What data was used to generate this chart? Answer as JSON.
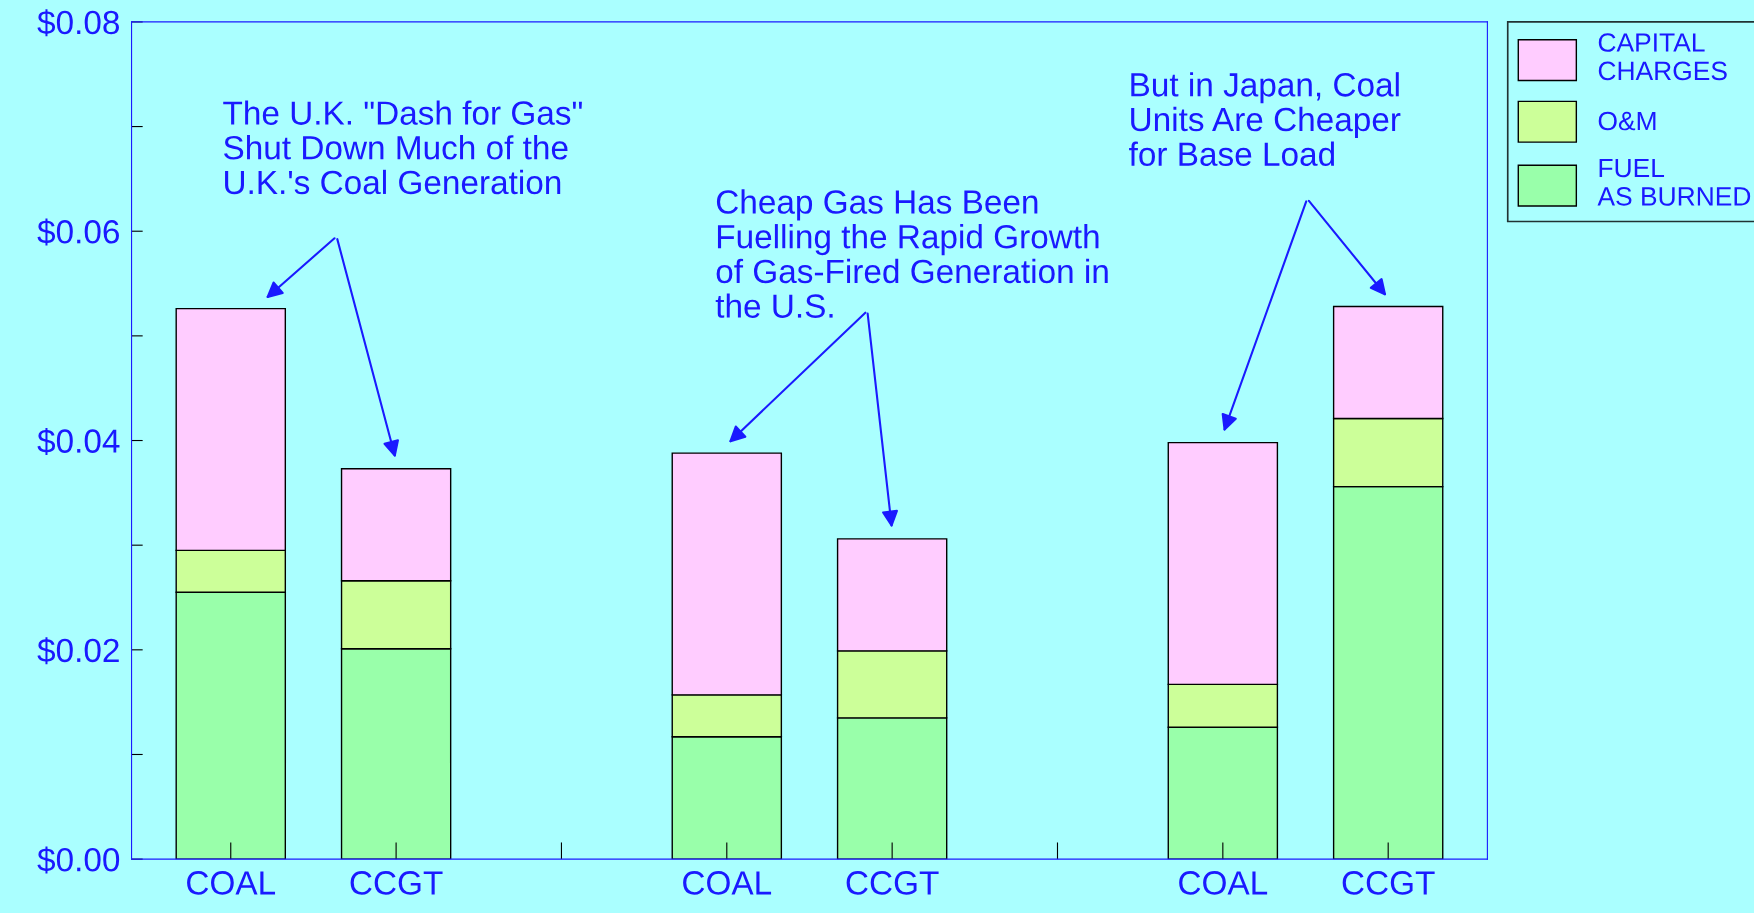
{
  "chart_data": {
    "type": "bar",
    "stacked": true,
    "categories": [
      "COAL",
      "CCGT",
      null,
      "COAL",
      "CCGT",
      null,
      "COAL",
      "CCGT"
    ],
    "series": [
      {
        "name": "FUEL AS BURNED",
        "color": "#99ffaa",
        "values": [
          0.0255,
          0.0201,
          null,
          0.0117,
          0.0135,
          null,
          0.0126,
          0.0356
        ]
      },
      {
        "name": "O&M",
        "color": "#ccff99",
        "values": [
          0.004,
          0.0065,
          null,
          0.004,
          0.0064,
          null,
          0.0041,
          0.0065
        ]
      },
      {
        "name": "CAPITAL CHARGES",
        "color": "#ffccff",
        "values": [
          0.0231,
          0.0107,
          null,
          0.0231,
          0.0107,
          null,
          0.0231,
          0.0107
        ]
      }
    ],
    "ylim": [
      0,
      0.08
    ],
    "yticks": [
      {
        "value": 0,
        "label": "$0.00"
      },
      {
        "value": 0.01,
        "label": null
      },
      {
        "value": 0.02,
        "label": "$0.02"
      },
      {
        "value": 0.03,
        "label": null
      },
      {
        "value": 0.04,
        "label": "$0.04"
      },
      {
        "value": 0.05,
        "label": null
      },
      {
        "value": 0.06,
        "label": "$0.06"
      },
      {
        "value": 0.07,
        "label": null
      },
      {
        "value": 0.08,
        "label": "$0.08"
      }
    ],
    "annotations": [
      "The U.K. \"Dash for Gas\"\nShut Down Much of the\nU.K.'s Coal Generation",
      "Cheap Gas Has Been\nFuelling the Rapid Growth\nof Gas-Fired Generation in\nthe U.S.",
      "But in Japan, Coal\nUnits Are Cheaper\nfor Base Load"
    ],
    "legend": "right",
    "grid": false
  }
}
